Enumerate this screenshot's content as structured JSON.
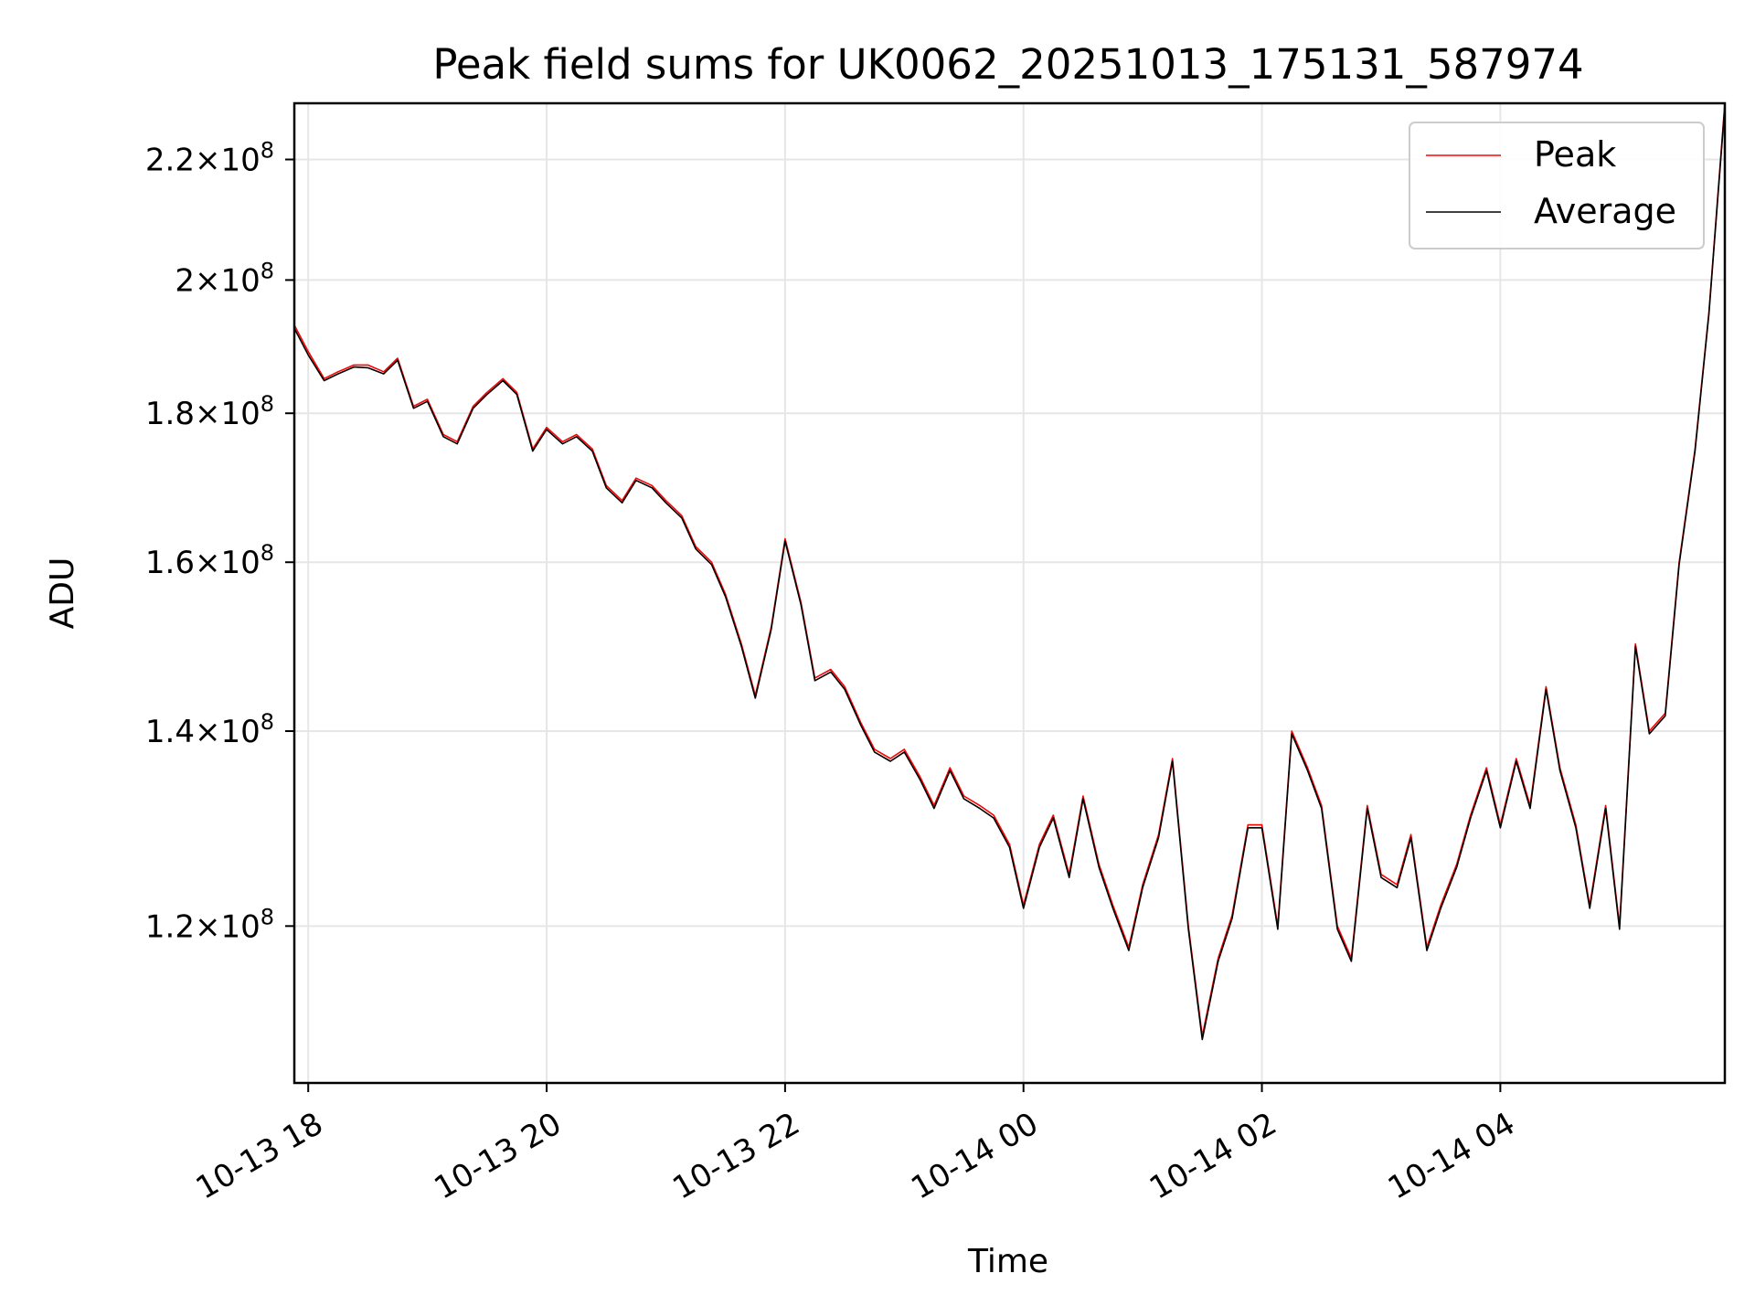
{
  "chart_data": {
    "type": "line",
    "title": "Peak field sums for UK0062_20251013_175131_587974",
    "xlabel": "Time",
    "ylabel": "ADU",
    "yscale": "log",
    "ylim": [
      106000000,
      230000000
    ],
    "xlim": [
      "2025-10-13 17:53",
      "2025-10-14 05:53"
    ],
    "grid": true,
    "legend_position": "top-right",
    "x_ticks": [
      {
        "value": "2025-10-13 18:00",
        "label": "10-13 18"
      },
      {
        "value": "2025-10-13 20:00",
        "label": "10-13 20"
      },
      {
        "value": "2025-10-13 22:00",
        "label": "10-13 22"
      },
      {
        "value": "2025-10-14 00:00",
        "label": "10-14 00"
      },
      {
        "value": "2025-10-14 02:00",
        "label": "10-14 02"
      },
      {
        "value": "2025-10-14 04:00",
        "label": "10-14 04"
      }
    ],
    "y_ticks": [
      {
        "value": 120000000,
        "mantissa": "1.2",
        "exponent": "8"
      },
      {
        "value": 140000000,
        "mantissa": "1.4",
        "exponent": "8"
      },
      {
        "value": 160000000,
        "mantissa": "1.6",
        "exponent": "8"
      },
      {
        "value": 180000000,
        "mantissa": "1.8",
        "exponent": "8"
      },
      {
        "value": 200000000,
        "mantissa": "2",
        "exponent": "8"
      },
      {
        "value": 220000000,
        "mantissa": "2.2",
        "exponent": "8"
      }
    ],
    "tick_times_base": "×10",
    "series": [
      {
        "name": "Peak",
        "color": "#ff0000",
        "x": [
          "2025-10-13 17:53",
          "2025-10-13 18:00",
          "2025-10-13 18:08",
          "2025-10-13 18:15",
          "2025-10-13 18:23",
          "2025-10-13 18:30",
          "2025-10-13 18:38",
          "2025-10-13 18:45",
          "2025-10-13 18:53",
          "2025-10-13 19:00",
          "2025-10-13 19:08",
          "2025-10-13 19:15",
          "2025-10-13 19:23",
          "2025-10-13 19:30",
          "2025-10-13 19:38",
          "2025-10-13 19:45",
          "2025-10-13 19:53",
          "2025-10-13 20:00",
          "2025-10-13 20:08",
          "2025-10-13 20:15",
          "2025-10-13 20:23",
          "2025-10-13 20:30",
          "2025-10-13 20:38",
          "2025-10-13 20:45",
          "2025-10-13 20:53",
          "2025-10-13 21:00",
          "2025-10-13 21:08",
          "2025-10-13 21:15",
          "2025-10-13 21:23",
          "2025-10-13 21:30",
          "2025-10-13 21:38",
          "2025-10-13 21:45",
          "2025-10-13 21:53",
          "2025-10-13 22:00",
          "2025-10-13 22:08",
          "2025-10-13 22:15",
          "2025-10-13 22:23",
          "2025-10-13 22:30",
          "2025-10-13 22:38",
          "2025-10-13 22:45",
          "2025-10-13 22:53",
          "2025-10-13 23:00",
          "2025-10-13 23:08",
          "2025-10-13 23:15",
          "2025-10-13 23:23",
          "2025-10-13 23:30",
          "2025-10-13 23:38",
          "2025-10-13 23:45",
          "2025-10-13 23:53",
          "2025-10-14 00:00",
          "2025-10-14 00:08",
          "2025-10-14 00:15",
          "2025-10-14 00:23",
          "2025-10-14 00:30",
          "2025-10-14 00:38",
          "2025-10-14 00:45",
          "2025-10-14 00:53",
          "2025-10-14 01:00",
          "2025-10-14 01:08",
          "2025-10-14 01:15",
          "2025-10-14 01:23",
          "2025-10-14 01:30",
          "2025-10-14 01:38",
          "2025-10-14 01:45",
          "2025-10-14 01:53",
          "2025-10-14 02:00",
          "2025-10-14 02:08",
          "2025-10-14 02:15",
          "2025-10-14 02:23",
          "2025-10-14 02:30",
          "2025-10-14 02:38",
          "2025-10-14 02:45",
          "2025-10-14 02:53",
          "2025-10-14 03:00",
          "2025-10-14 03:08",
          "2025-10-14 03:15",
          "2025-10-14 03:23",
          "2025-10-14 03:30",
          "2025-10-14 03:38",
          "2025-10-14 03:45",
          "2025-10-14 03:53",
          "2025-10-14 04:00",
          "2025-10-14 04:08",
          "2025-10-14 04:15",
          "2025-10-14 04:23",
          "2025-10-14 04:30",
          "2025-10-14 04:38",
          "2025-10-14 04:45",
          "2025-10-14 04:53",
          "2025-10-14 05:00",
          "2025-10-14 05:08",
          "2025-10-14 05:15",
          "2025-10-14 05:23",
          "2025-10-14 05:30",
          "2025-10-14 05:38",
          "2025-10-14 05:45",
          "2025-10-14 05:53"
        ],
        "y": [
          193000000,
          189000000,
          185000000,
          186000000,
          187000000,
          187000000,
          186000000,
          188000000,
          181000000,
          182000000,
          177000000,
          176000000,
          181000000,
          183000000,
          185000000,
          183000000,
          175000000,
          178000000,
          176000000,
          177000000,
          175000000,
          170000000,
          168000000,
          171000000,
          170000000,
          168000000,
          166000000,
          162000000,
          160000000,
          156000000,
          150000000,
          144000000,
          152000000,
          163000000,
          155000000,
          146000000,
          147000000,
          145000000,
          141000000,
          138000000,
          137000000,
          138000000,
          135000000,
          132000000,
          136000000,
          133000000,
          132000000,
          131000000,
          128000000,
          122000000,
          128000000,
          131000000,
          125000000,
          133000000,
          126000000,
          122000000,
          118000000,
          124000000,
          129000000,
          137000000,
          120000000,
          110000000,
          117000000,
          121000000,
          130000000,
          130000000,
          120000000,
          140000000,
          136000000,
          132000000,
          120000000,
          117000000,
          132000000,
          125000000,
          124000000,
          129000000,
          118000000,
          122000000,
          126000000,
          131000000,
          136000000,
          130000000,
          137000000,
          132000000,
          145000000,
          136000000,
          130000000,
          122000000,
          132000000,
          120000000,
          150000000,
          140000000,
          142000000,
          160000000,
          175000000,
          195000000,
          230000000
        ]
      },
      {
        "name": "Average",
        "color": "#000000",
        "x": [
          "2025-10-13 17:53",
          "2025-10-13 18:00",
          "2025-10-13 18:08",
          "2025-10-13 18:15",
          "2025-10-13 18:23",
          "2025-10-13 18:30",
          "2025-10-13 18:38",
          "2025-10-13 18:45",
          "2025-10-13 18:53",
          "2025-10-13 19:00",
          "2025-10-13 19:08",
          "2025-10-13 19:15",
          "2025-10-13 19:23",
          "2025-10-13 19:30",
          "2025-10-13 19:38",
          "2025-10-13 19:45",
          "2025-10-13 19:53",
          "2025-10-13 20:00",
          "2025-10-13 20:08",
          "2025-10-13 20:15",
          "2025-10-13 20:23",
          "2025-10-13 20:30",
          "2025-10-13 20:38",
          "2025-10-13 20:45",
          "2025-10-13 20:53",
          "2025-10-13 21:00",
          "2025-10-13 21:08",
          "2025-10-13 21:15",
          "2025-10-13 21:23",
          "2025-10-13 21:30",
          "2025-10-13 21:38",
          "2025-10-13 21:45",
          "2025-10-13 21:53",
          "2025-10-13 22:00",
          "2025-10-13 22:08",
          "2025-10-13 22:15",
          "2025-10-13 22:23",
          "2025-10-13 22:30",
          "2025-10-13 22:38",
          "2025-10-13 22:45",
          "2025-10-13 22:53",
          "2025-10-13 23:00",
          "2025-10-13 23:08",
          "2025-10-13 23:15",
          "2025-10-13 23:23",
          "2025-10-13 23:30",
          "2025-10-13 23:38",
          "2025-10-13 23:45",
          "2025-10-13 23:53",
          "2025-10-14 00:00",
          "2025-10-14 00:08",
          "2025-10-14 00:15",
          "2025-10-14 00:23",
          "2025-10-14 00:30",
          "2025-10-14 00:38",
          "2025-10-14 00:45",
          "2025-10-14 00:53",
          "2025-10-14 01:00",
          "2025-10-14 01:08",
          "2025-10-14 01:15",
          "2025-10-14 01:23",
          "2025-10-14 01:30",
          "2025-10-14 01:38",
          "2025-10-14 01:45",
          "2025-10-14 01:53",
          "2025-10-14 02:00",
          "2025-10-14 02:08",
          "2025-10-14 02:15",
          "2025-10-14 02:23",
          "2025-10-14 02:30",
          "2025-10-14 02:38",
          "2025-10-14 02:45",
          "2025-10-14 02:53",
          "2025-10-14 03:00",
          "2025-10-14 03:08",
          "2025-10-14 03:15",
          "2025-10-14 03:23",
          "2025-10-14 03:30",
          "2025-10-14 03:38",
          "2025-10-14 03:45",
          "2025-10-14 03:53",
          "2025-10-14 04:00",
          "2025-10-14 04:08",
          "2025-10-14 04:15",
          "2025-10-14 04:23",
          "2025-10-14 04:30",
          "2025-10-14 04:38",
          "2025-10-14 04:45",
          "2025-10-14 04:53",
          "2025-10-14 05:00",
          "2025-10-14 05:08",
          "2025-10-14 05:15",
          "2025-10-14 05:23",
          "2025-10-14 05:30",
          "2025-10-14 05:38",
          "2025-10-14 05:45",
          "2025-10-14 05:53"
        ],
        "y": [
          192500000,
          188500000,
          184700000,
          185700000,
          186700000,
          186600000,
          185700000,
          187700000,
          180700000,
          181700000,
          176700000,
          175700000,
          180700000,
          182700000,
          184700000,
          182700000,
          174700000,
          177700000,
          175700000,
          176700000,
          174700000,
          169700000,
          167700000,
          170700000,
          169700000,
          167700000,
          165700000,
          161700000,
          159700000,
          155700000,
          149700000,
          143700000,
          151700000,
          162700000,
          154700000,
          145700000,
          146700000,
          144700000,
          140700000,
          137700000,
          136700000,
          137700000,
          134700000,
          131700000,
          135700000,
          132700000,
          131700000,
          130700000,
          127700000,
          121700000,
          127700000,
          130700000,
          124700000,
          132700000,
          125700000,
          121700000,
          117700000,
          123700000,
          128700000,
          136700000,
          119700000,
          109700000,
          116700000,
          120700000,
          129700000,
          129700000,
          119700000,
          139700000,
          135700000,
          131700000,
          119700000,
          116700000,
          131700000,
          124700000,
          123700000,
          128700000,
          117700000,
          121700000,
          125700000,
          130700000,
          135700000,
          129700000,
          136700000,
          131700000,
          144700000,
          135700000,
          129700000,
          121700000,
          131700000,
          119700000,
          149700000,
          139700000,
          141700000,
          159700000,
          174700000,
          194700000,
          229500000
        ]
      }
    ]
  }
}
